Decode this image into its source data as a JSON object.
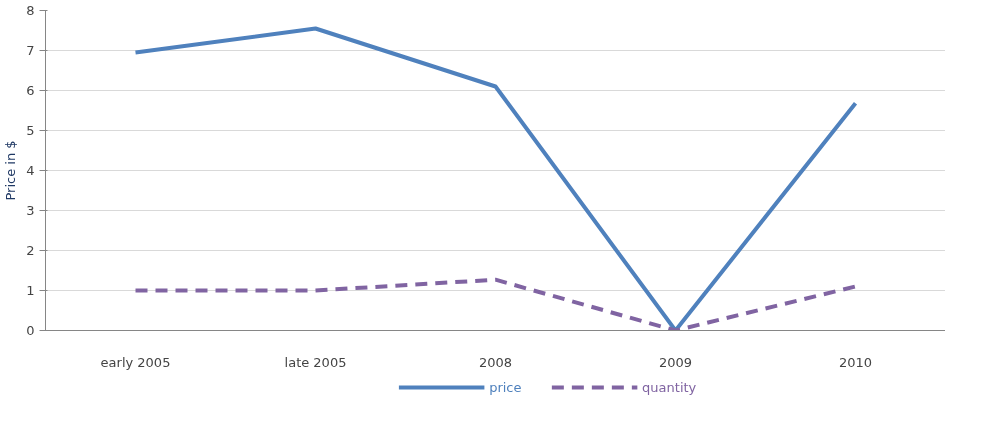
{
  "chart_data": {
    "type": "line",
    "ylabel": "Price in $",
    "categories": [
      "early 2005",
      "late 2005",
      "2008",
      "2009",
      "2010"
    ],
    "series": [
      {
        "name": "price",
        "color": "#4f81bd",
        "values": [
          6.95,
          7.55,
          6.1,
          0,
          5.68
        ],
        "line_style": "solid"
      },
      {
        "name": "quantity",
        "color": "#8064a2",
        "values": [
          1,
          1,
          1.27,
          0,
          1.1
        ],
        "line_style": "dashed"
      }
    ],
    "ylim": [
      0,
      8
    ],
    "yticks": [
      0,
      1,
      2,
      3,
      4,
      5,
      6,
      7,
      8
    ],
    "grid": "y",
    "legend": "bottom"
  }
}
